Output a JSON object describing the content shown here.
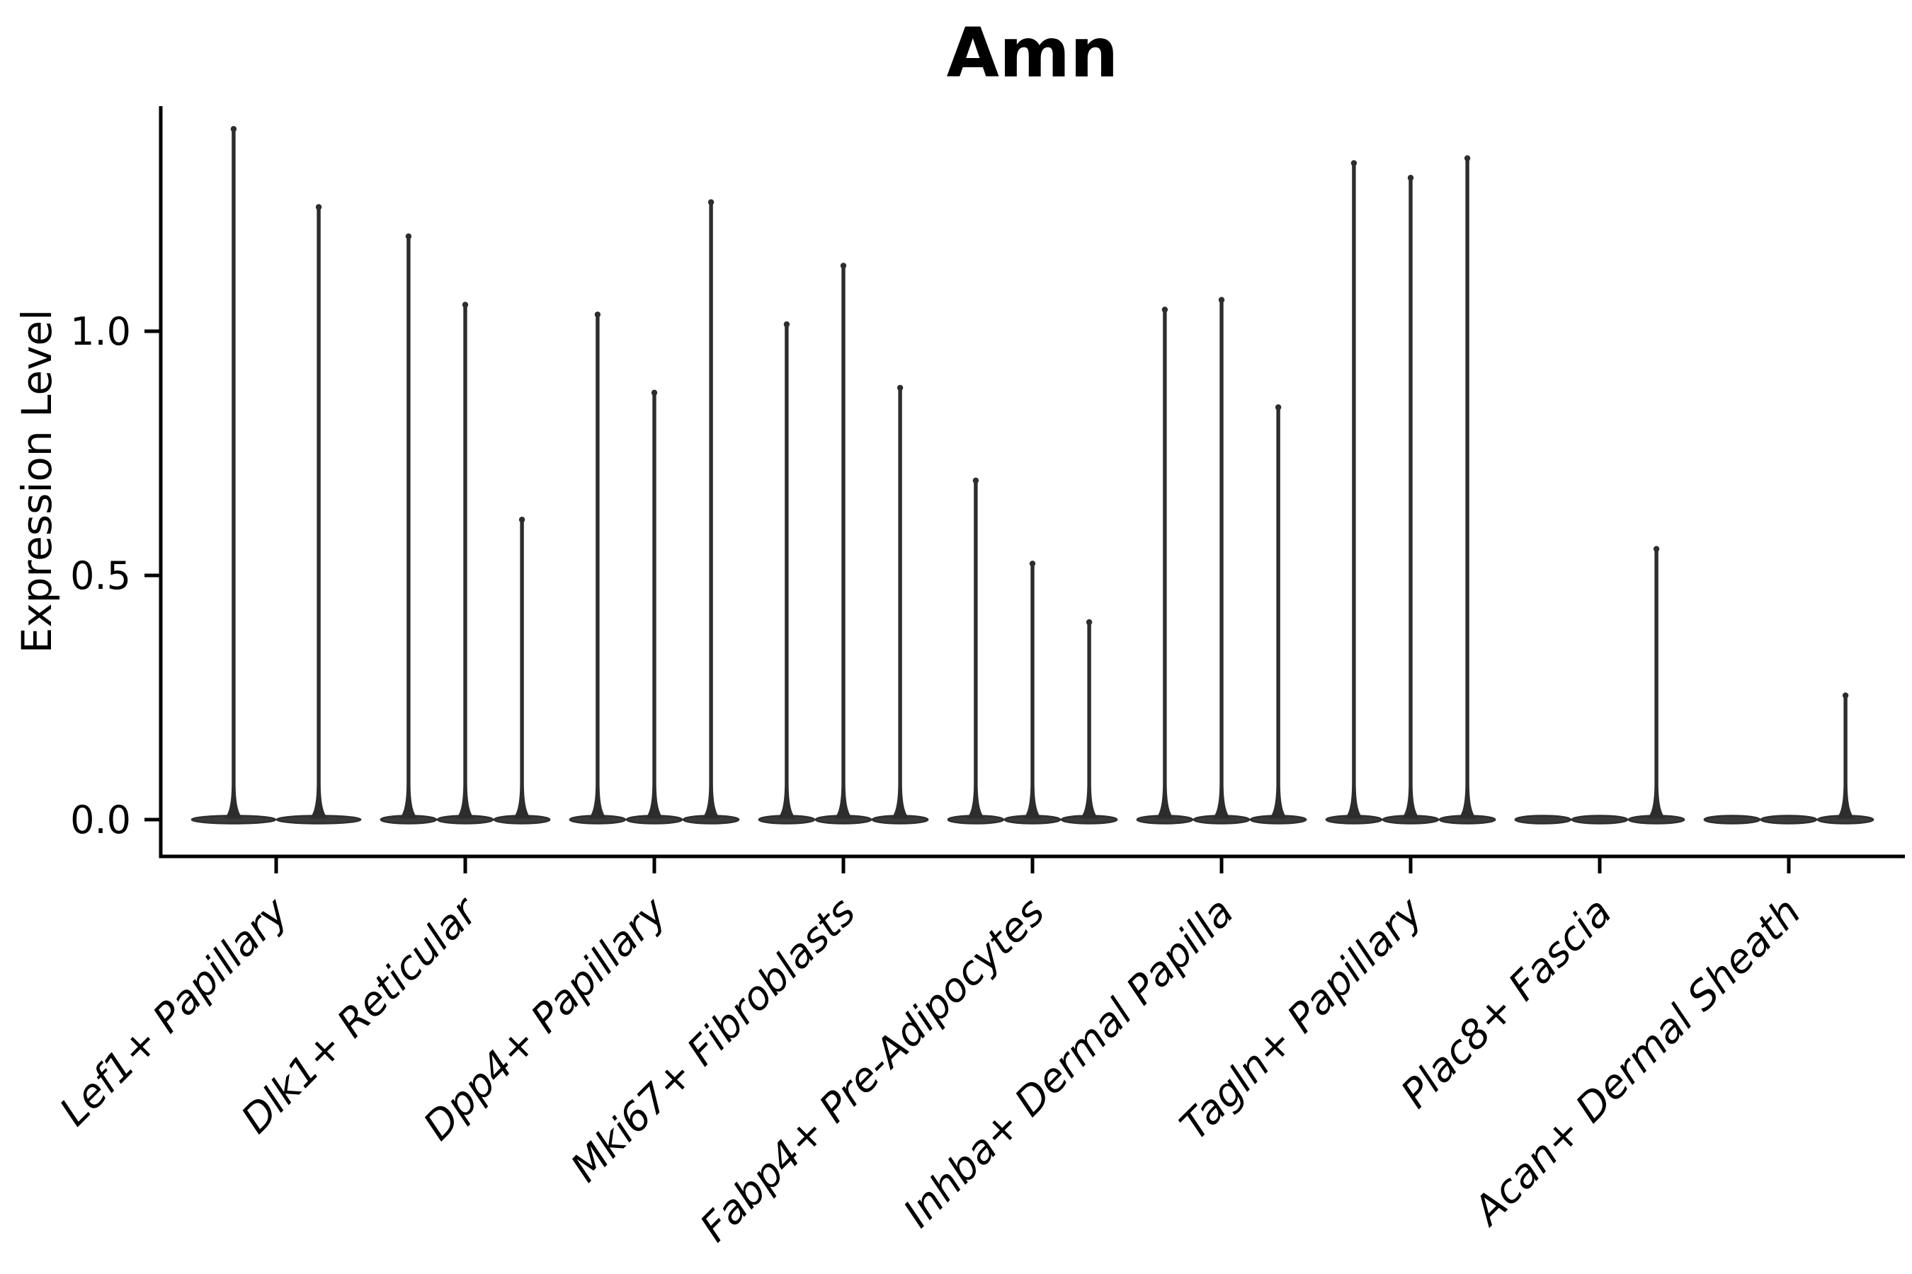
{
  "chart_data": {
    "type": "violin",
    "title": "Amn",
    "ylabel": "Expression Level",
    "xlabel": "",
    "ytick_labels": [
      "0.0",
      "0.5",
      "1.0"
    ],
    "yticks": [
      0.0,
      0.5,
      1.0
    ],
    "ylim": [
      -0.08,
      1.46
    ],
    "grid": false,
    "legend": "none",
    "x_tick_label_rotation_deg": 45,
    "x_tick_label_style": "italic",
    "violin_fill_color": "#3a3a3a",
    "violin_line_color": "#2d2d2d",
    "axis_color": "#000000",
    "background_color": "#ffffff",
    "description": "Each violin is a mostly-zero expression distribution: a flat wide mass at 0 with a thin spike reaching the max expression value.",
    "groups": [
      {
        "category": "Lef1+ Papillary",
        "violin_max_expression": [
          1.42,
          1.26
        ]
      },
      {
        "category": "Dlk1+ Reticular",
        "violin_max_expression": [
          1.2,
          1.06,
          0.62
        ]
      },
      {
        "category": "Dpp4+ Papillary",
        "violin_max_expression": [
          1.04,
          0.88,
          1.27
        ]
      },
      {
        "category": "Mki67+ Fibroblasts",
        "violin_max_expression": [
          1.02,
          1.14,
          0.89
        ]
      },
      {
        "category": "Fabp4+ Pre-Adipocytes",
        "violin_max_expression": [
          0.7,
          0.53,
          0.41
        ]
      },
      {
        "category": "Inhba+ Dermal Papilla",
        "violin_max_expression": [
          1.05,
          1.07,
          0.85
        ]
      },
      {
        "category": "Tagln+ Papillary",
        "violin_max_expression": [
          1.35,
          1.32,
          1.36
        ]
      },
      {
        "category": "Plac8+ Fascia",
        "violin_max_expression": [
          0,
          0,
          0.56
        ]
      },
      {
        "category": "Acan+ Dermal Sheath",
        "violin_max_expression": [
          0,
          0,
          0.26
        ]
      }
    ]
  }
}
